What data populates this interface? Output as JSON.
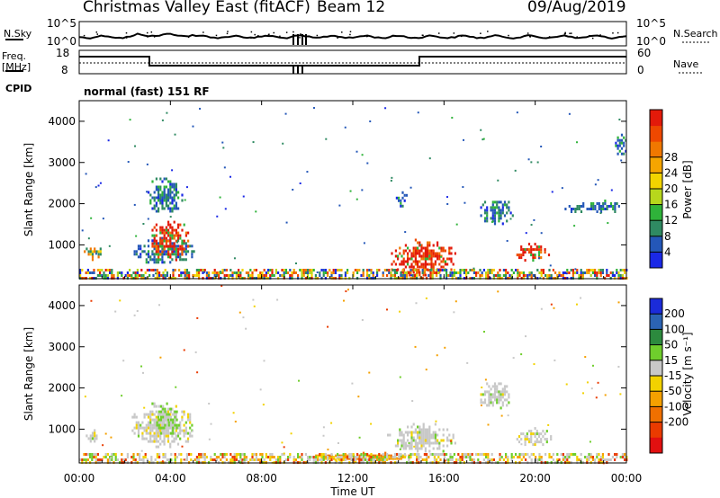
{
  "header": {
    "title": "Christmas Valley East (fitACF)",
    "beam": "Beam 12",
    "date": "09/Aug/2019"
  },
  "noise_panel": {
    "left_label": "N.Sky",
    "left_ticks": [
      "10^5",
      "10^0"
    ],
    "right_label": "N.Search",
    "right_ticks": [
      "10^5",
      "10^0"
    ]
  },
  "freq_panel": {
    "left_label_1": "Freq.",
    "left_label_2": "[MHz]",
    "left_ticks": [
      "18",
      "8"
    ],
    "right_label": "Nave",
    "right_ticks": [
      "60",
      "0"
    ]
  },
  "cpid": {
    "label": "CPID",
    "mode": "normal (fast) 151 RF"
  },
  "x_axis": {
    "ticks": [
      "00:00",
      "04:00",
      "08:00",
      "12:00",
      "16:00",
      "20:00",
      "00:00"
    ],
    "label": "Time UT"
  },
  "y_axis": {
    "label": "Slant Range [km]",
    "ticks": [
      "1000",
      "2000",
      "3000",
      "4000"
    ]
  },
  "colorbars": {
    "power": {
      "label": "Power [dB]",
      "ticks": [
        "4",
        "8",
        "12",
        "16",
        "20",
        "24",
        "28"
      ],
      "colors": [
        "#1a28e6",
        "#2457b8",
        "#2f8a62",
        "#2fb33a",
        "#b7d71c",
        "#f2d400",
        "#f5a500",
        "#f07800",
        "#ee4800",
        "#e31a0a"
      ]
    },
    "velocity": {
      "label": "Velocity [m s^-1]",
      "ticks": [
        "200",
        "100",
        "50",
        "15",
        "-15",
        "-50",
        "-100",
        "-200"
      ],
      "colors": [
        "#1b2bd9",
        "#2b63b3",
        "#2c8a3e",
        "#6fce2c",
        "#c8c8c8",
        "#f2d200",
        "#f5a000",
        "#f07000",
        "#ea3b00",
        "#e21010"
      ]
    }
  },
  "chart_data": [
    {
      "type": "heatmap",
      "name_hint": "power",
      "x_range_hours": [
        0,
        24
      ],
      "y_range_km": [
        180,
        4500
      ],
      "regions": [
        {
          "t": [
            0.2,
            1.0
          ],
          "r": [
            650,
            1000
          ],
          "level": "mid"
        },
        {
          "t": [
            2.3,
            5.0
          ],
          "r": [
            550,
            1200
          ],
          "level": "low"
        },
        {
          "t": [
            3.0,
            4.8
          ],
          "r": [
            650,
            1650
          ],
          "level": "high"
        },
        {
          "t": [
            3.0,
            4.5
          ],
          "r": [
            1750,
            2700
          ],
          "level": "low"
        },
        {
          "t": [
            13.5,
            16.5
          ],
          "r": [
            250,
            1150
          ],
          "level": "high"
        },
        {
          "t": [
            13.8,
            14.5
          ],
          "r": [
            1950,
            2300
          ],
          "level": "low"
        },
        {
          "t": [
            17.5,
            19.0
          ],
          "r": [
            1500,
            2200
          ],
          "level": "low"
        },
        {
          "t": [
            19.0,
            20.7
          ],
          "r": [
            600,
            1050
          ],
          "level": "high"
        },
        {
          "t": [
            21.2,
            24.0
          ],
          "r": [
            1800,
            2100
          ],
          "level": "low"
        },
        {
          "t": [
            23.5,
            24.0
          ],
          "r": [
            3200,
            3700
          ],
          "level": "low"
        },
        {
          "t": [
            0.0,
            24.0
          ],
          "r": [
            180,
            420
          ],
          "level": "mixed"
        }
      ]
    },
    {
      "type": "heatmap",
      "name_hint": "velocity",
      "x_range_hours": [
        0,
        24
      ],
      "y_range_km": [
        180,
        4500
      ],
      "regions": [
        {
          "t": [
            0.2,
            1.0
          ],
          "r": [
            650,
            1000
          ],
          "level": "zero"
        },
        {
          "t": [
            2.3,
            5.0
          ],
          "r": [
            550,
            1650
          ],
          "level": "zero"
        },
        {
          "t": [
            3.2,
            4.4
          ],
          "r": [
            800,
            1650
          ],
          "level": "pos"
        },
        {
          "t": [
            13.5,
            16.5
          ],
          "r": [
            450,
            1150
          ],
          "level": "zero"
        },
        {
          "t": [
            10.0,
            15.0
          ],
          "r": [
            250,
            450
          ],
          "level": "neg"
        },
        {
          "t": [
            17.5,
            19.0
          ],
          "r": [
            1500,
            2200
          ],
          "level": "zero"
        },
        {
          "t": [
            19.0,
            20.7
          ],
          "r": [
            600,
            1050
          ],
          "level": "zero"
        },
        {
          "t": [
            0.0,
            24.0
          ],
          "r": [
            180,
            420
          ],
          "level": "mixed"
        }
      ]
    }
  ]
}
